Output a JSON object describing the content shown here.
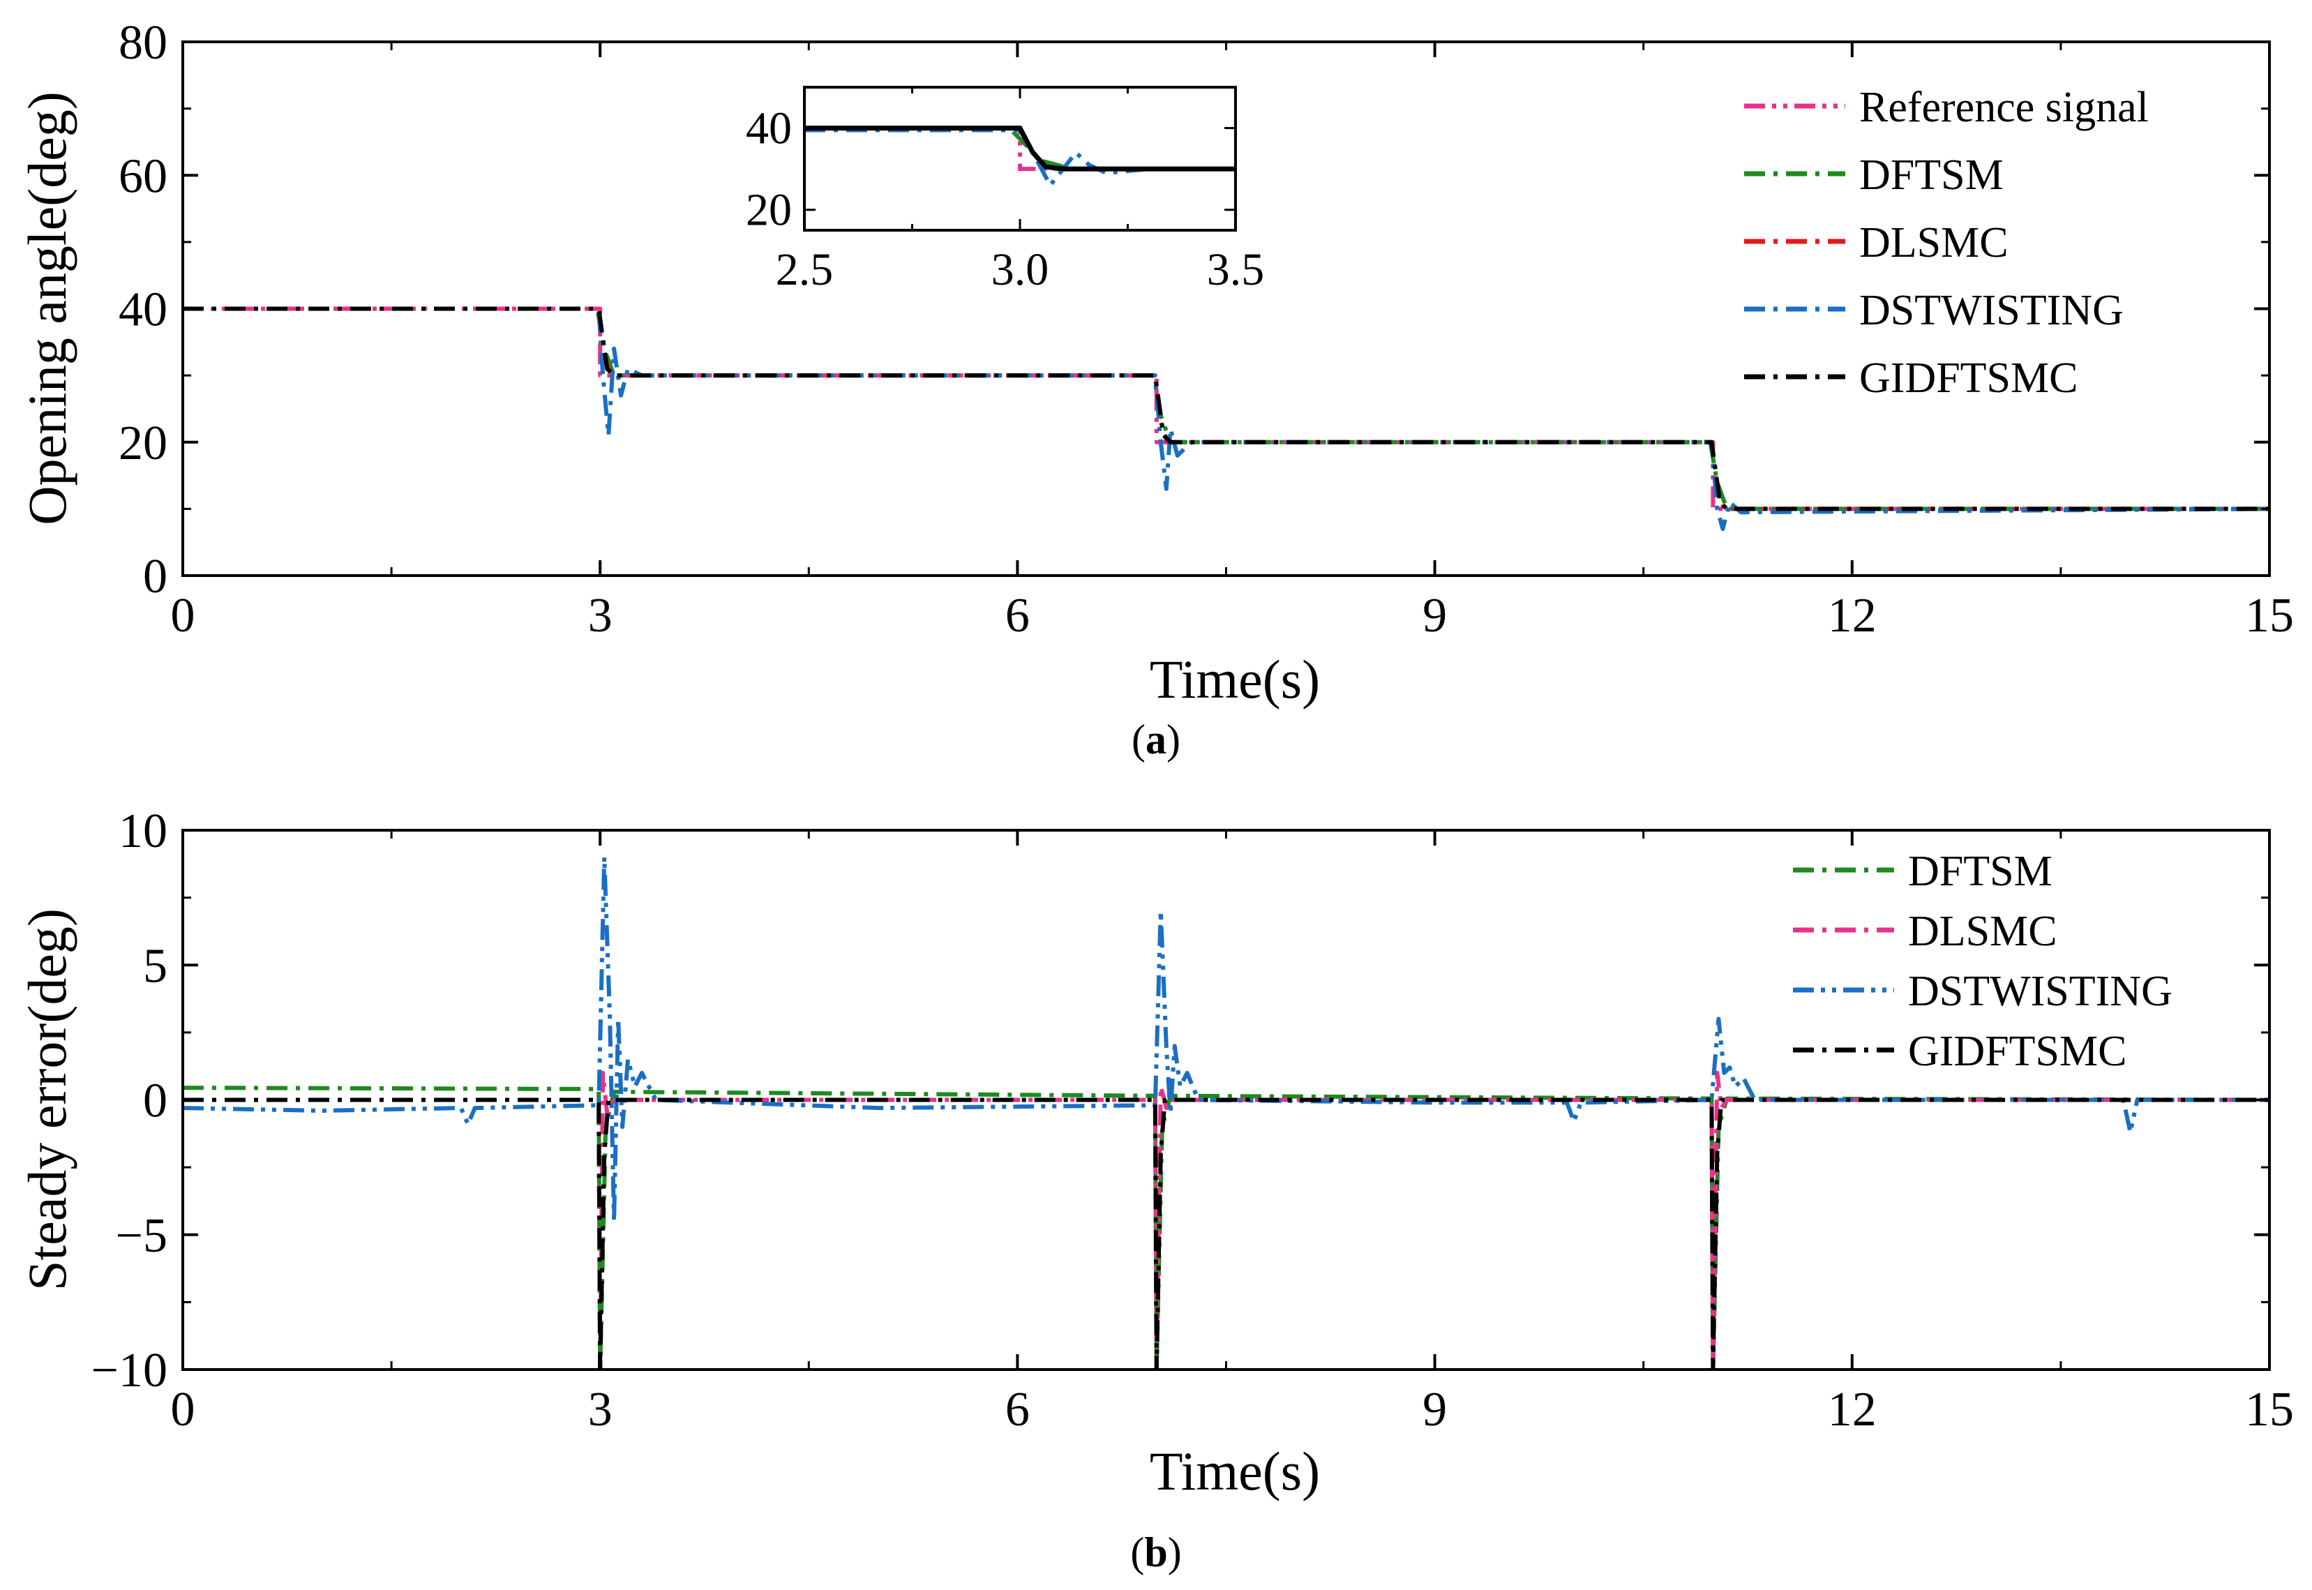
{
  "chart_data": [
    {
      "id": "a",
      "type": "line",
      "caption_open": "(",
      "caption_letter": "a",
      "caption_close": ")",
      "xlabel": "Time(s)",
      "ylabel": "Opening angle(deg)",
      "xlim": [
        0,
        15
      ],
      "ylim": [
        0,
        80
      ],
      "xticks": [
        0,
        3,
        6,
        9,
        12,
        15
      ],
      "yticks": [
        0,
        20,
        40,
        60,
        80
      ],
      "legend_position": "top-right",
      "series": [
        {
          "name": "Reference signal",
          "color": "#e8318a",
          "dash": "dash-dot-dot",
          "x": [
            0,
            3.0,
            3.0,
            7.0,
            7.0,
            11.0,
            11.0,
            15
          ],
          "y": [
            40,
            40,
            30,
            30,
            20,
            20,
            10,
            10
          ]
        },
        {
          "name": "DFTSM",
          "color": "#1f8a1f",
          "dash": "dash-dot",
          "x": [
            0,
            2.98,
            3.03,
            3.1,
            6.98,
            7.03,
            7.1,
            10.98,
            11.03,
            11.1,
            15
          ],
          "y": [
            40,
            40,
            34,
            30,
            30,
            24,
            20,
            20,
            14,
            10,
            10
          ]
        },
        {
          "name": "DLSMC",
          "color": "#e5191b",
          "dash": "dash-dot",
          "x": [
            0,
            2.99,
            3.03,
            3.08,
            6.99,
            7.03,
            7.08,
            10.99,
            11.03,
            11.08,
            15
          ],
          "y": [
            40,
            40,
            33,
            30,
            30,
            23,
            20,
            20,
            13,
            10,
            10
          ]
        },
        {
          "name": "DSTWISTING",
          "color": "#1a6fc4",
          "dash": "dash-dot",
          "x": [
            0,
            2.99,
            3.02,
            3.06,
            3.1,
            3.15,
            3.2,
            3.3,
            6.99,
            7.03,
            7.07,
            7.1,
            7.15,
            7.25,
            10.99,
            11.03,
            11.07,
            11.12,
            11.2,
            15
          ],
          "y": [
            40,
            40,
            30,
            21,
            34,
            27,
            31,
            30,
            30,
            20,
            13,
            22,
            18,
            20,
            20,
            10,
            7,
            11,
            9.5,
            10
          ]
        },
        {
          "name": "GIDFTSMC",
          "color": "#000000",
          "dash": "dash-dot",
          "x": [
            0,
            2.99,
            3.05,
            3.1,
            6.99,
            7.05,
            7.1,
            10.99,
            11.05,
            11.1,
            15
          ],
          "y": [
            40,
            40,
            31,
            30,
            30,
            21,
            20,
            20,
            11,
            10,
            10
          ]
        }
      ],
      "inset": {
        "xlim": [
          2.5,
          3.5
        ],
        "ylim": [
          15,
          50
        ],
        "xticks": [
          2.5,
          3.0,
          3.5
        ],
        "xtick_labels": [
          "2.5",
          "3.0",
          "3.5"
        ],
        "yticks": [
          20,
          40
        ],
        "series": [
          {
            "name": "Reference signal",
            "color": "#e8318a",
            "dash": "dash-dot-dot",
            "x": [
              2.5,
              3.0,
              3.0,
              3.5
            ],
            "y": [
              40,
              40,
              30,
              30
            ]
          },
          {
            "name": "DFTSM",
            "color": "#1f8a1f",
            "dash": "dash-dot",
            "x": [
              2.5,
              2.98,
              3.05,
              3.12,
              3.5
            ],
            "y": [
              39.5,
              39.5,
              32,
              30,
              30
            ]
          },
          {
            "name": "DSTWISTING",
            "color": "#1a6fc4",
            "dash": "dash-dot",
            "x": [
              2.5,
              3.0,
              3.04,
              3.07,
              3.1,
              3.13,
              3.16,
              3.2,
              3.3,
              3.5
            ],
            "y": [
              39.5,
              39.5,
              32,
              26,
              30,
              34,
              31,
              29,
              30,
              30
            ]
          },
          {
            "name": "GIDFTSMC",
            "color": "#000000",
            "dash": "solid",
            "x": [
              2.5,
              3.0,
              3.03,
              3.06,
              3.1,
              3.5
            ],
            "y": [
              40,
              40,
              34,
              30.5,
              30,
              30
            ]
          }
        ]
      }
    },
    {
      "id": "b",
      "type": "line",
      "caption_open": "(",
      "caption_letter": "b",
      "caption_close": ")",
      "xlabel": "Time(s)",
      "ylabel": "Steady error(deg)",
      "xlim": [
        0,
        15
      ],
      "ylim": [
        -10,
        10
      ],
      "xticks": [
        0,
        3,
        6,
        9,
        12,
        15
      ],
      "yticks": [
        -10,
        -5,
        0,
        5,
        10
      ],
      "ytick_labels": [
        "−10",
        "−5",
        "0",
        "5",
        "10"
      ],
      "legend_position": "top-right",
      "series": [
        {
          "name": "DFTSM",
          "color": "#1f8a1f",
          "dash": "dash-dot",
          "x": [
            0,
            2.99,
            3.0,
            3.04,
            3.1,
            6.99,
            7.0,
            7.04,
            7.1,
            10.99,
            11.0,
            11.04,
            11.1,
            15
          ],
          "y": [
            0.45,
            0.4,
            -10,
            -1,
            0.3,
            0.15,
            -10,
            -1,
            0.15,
            0.05,
            -10,
            -1,
            0.05,
            0.0
          ]
        },
        {
          "name": "DLSMC",
          "color": "#e8318a",
          "dash": "dash-dot",
          "x": [
            0,
            2.99,
            3.0,
            3.02,
            3.05,
            3.1,
            6.99,
            7.0,
            7.03,
            7.07,
            7.1,
            10.99,
            11.0,
            11.03,
            11.06,
            11.1,
            15
          ],
          "y": [
            0,
            0,
            -10,
            1,
            -0.5,
            0,
            0,
            -10,
            0.5,
            -0.3,
            0,
            0,
            -10,
            1,
            -0.3,
            0,
            0
          ]
        },
        {
          "name": "DSTWISTING",
          "color": "#1a6fc4",
          "dash": "dash-dot-dot",
          "x": [
            0,
            1.0,
            2.0,
            2.05,
            2.1,
            2.99,
            3.03,
            3.07,
            3.1,
            3.13,
            3.16,
            3.2,
            3.25,
            3.3,
            3.4,
            5.0,
            6.99,
            7.03,
            7.07,
            7.1,
            7.13,
            7.17,
            7.22,
            7.3,
            9.0,
            9.95,
            10.0,
            10.05,
            10.99,
            11.04,
            11.08,
            11.12,
            11.16,
            11.22,
            11.3,
            13.0,
            13.95,
            14.0,
            14.05,
            15
          ],
          "y": [
            -0.3,
            -0.4,
            -0.3,
            -0.9,
            -0.3,
            -0.2,
            9,
            3,
            -4.5,
            3,
            -1,
            1.5,
            0.5,
            1,
            0,
            -0.3,
            -0.2,
            7,
            2,
            -0.5,
            2,
            0.5,
            1,
            0,
            -0.1,
            -0.1,
            -0.8,
            -0.1,
            0,
            3,
            1,
            1.2,
            0.5,
            0.8,
            0,
            0,
            0,
            -1.2,
            0,
            0
          ]
        },
        {
          "name": "GIDFTSMC",
          "color": "#000000",
          "dash": "dash-dot",
          "x": [
            0,
            2.99,
            3.0,
            3.03,
            3.06,
            3.1,
            6.99,
            7.0,
            7.03,
            7.06,
            7.1,
            10.99,
            11.0,
            11.03,
            11.06,
            11.1,
            15
          ],
          "y": [
            0,
            0,
            -10,
            -2,
            0,
            0,
            0,
            -10,
            -2,
            0,
            0,
            0,
            -10,
            -2,
            0,
            0,
            0
          ]
        }
      ]
    }
  ]
}
